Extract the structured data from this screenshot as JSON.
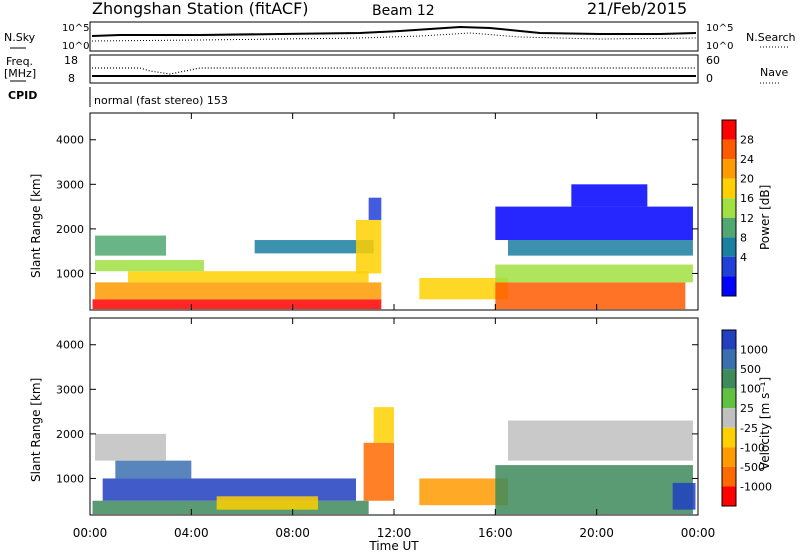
{
  "header": {
    "station": "Zhongshan Station (fitACF)",
    "beam": "Beam 12",
    "date": "21/Feb/2015"
  },
  "strips": {
    "nsky_label": "N.Sky",
    "nsky_scale": [
      "10^5",
      "10^0"
    ],
    "nsearch_label": "N.Search",
    "nsearch_scale": [
      "10^5",
      "10^0"
    ],
    "freq_label_1": "Freq.",
    "freq_label_2": "[MHz]",
    "freq_scale": [
      "18",
      "8"
    ],
    "nave_label": "Nave",
    "nave_scale": [
      "60",
      "0"
    ],
    "cpid_label": "CPID",
    "cpid_text": "normal (fast stereo) 153"
  },
  "colorbars": {
    "power": {
      "label": "Power [dB]",
      "ticks": [
        "28",
        "24",
        "20",
        "16",
        "12",
        "8",
        "4"
      ],
      "colors": [
        "#ff0000",
        "#ff5a00",
        "#ff9a00",
        "#ffd000",
        "#a0e040",
        "#50a870",
        "#1a7fa0",
        "#2040d8",
        "#0000ff"
      ]
    },
    "velocity": {
      "label": "Velocity [m s⁻¹]",
      "ticks": [
        "1000",
        "500",
        "100",
        "25",
        "-25",
        "-100",
        "-500",
        "-1000"
      ],
      "colors": [
        "#2040c0",
        "#3a70b0",
        "#3d8a5a",
        "#60c040",
        "#c0c0c0",
        "#ffd000",
        "#ff9a00",
        "#ff6a00",
        "#ff0000"
      ]
    }
  },
  "chart_data": [
    {
      "type": "heatmap",
      "panel": "power",
      "ylabel": "Slant Range [km]",
      "yticks": [
        1000,
        2000,
        3000,
        4000
      ],
      "ylim": [
        180,
        4600
      ],
      "xlim": [
        0,
        24
      ],
      "bands": [
        {
          "t0": 0.1,
          "t1": 11.5,
          "r0": 200,
          "r1": 420,
          "level": 0
        },
        {
          "t0": 0.2,
          "t1": 11.5,
          "r0": 420,
          "r1": 800,
          "level": 2
        },
        {
          "t0": 1.5,
          "t1": 11.0,
          "r0": 800,
          "r1": 1050,
          "level": 3
        },
        {
          "t0": 0.2,
          "t1": 4.5,
          "r0": 1050,
          "r1": 1300,
          "level": 4
        },
        {
          "t0": 0.2,
          "t1": 3.0,
          "r0": 1400,
          "r1": 1850,
          "level": 5
        },
        {
          "t0": 6.5,
          "t1": 11.2,
          "r0": 1450,
          "r1": 1750,
          "level": 6
        },
        {
          "t0": 10.5,
          "t1": 11.5,
          "r0": 1000,
          "r1": 2200,
          "level": 3
        },
        {
          "t0": 11.0,
          "t1": 11.5,
          "r0": 2200,
          "r1": 2700,
          "level": 7
        },
        {
          "t0": 13.0,
          "t1": 16.5,
          "r0": 420,
          "r1": 900,
          "level": 3
        },
        {
          "t0": 16.0,
          "t1": 23.5,
          "r0": 200,
          "r1": 800,
          "level": 1
        },
        {
          "t0": 16.0,
          "t1": 23.8,
          "r0": 800,
          "r1": 1200,
          "level": 4
        },
        {
          "t0": 16.5,
          "t1": 23.8,
          "r0": 1400,
          "r1": 1750,
          "level": 6
        },
        {
          "t0": 16.0,
          "t1": 23.8,
          "r0": 1750,
          "r1": 2500,
          "level": 8
        },
        {
          "t0": 19.0,
          "t1": 22.0,
          "r0": 2500,
          "r1": 3000,
          "level": 8
        }
      ]
    },
    {
      "type": "heatmap",
      "panel": "velocity",
      "ylabel": "Slant Range [km]",
      "yticks": [
        1000,
        2000,
        3000,
        4000
      ],
      "ylim": [
        180,
        4600
      ],
      "xlim": [
        0,
        24
      ],
      "xticks": [
        "00:00",
        "04:00",
        "08:00",
        "12:00",
        "16:00",
        "20:00",
        "00:00"
      ],
      "xlabel": "Time UT",
      "bands": [
        {
          "t0": 0.1,
          "t1": 11.0,
          "r0": 200,
          "r1": 500,
          "level": 2
        },
        {
          "t0": 0.5,
          "t1": 10.5,
          "r0": 500,
          "r1": 1000,
          "level": 0
        },
        {
          "t0": 1.0,
          "t1": 4.0,
          "r0": 1000,
          "r1": 1400,
          "level": 1
        },
        {
          "t0": 0.2,
          "t1": 3.0,
          "r0": 1400,
          "r1": 2000,
          "level": 4
        },
        {
          "t0": 5.0,
          "t1": 9.0,
          "r0": 300,
          "r1": 600,
          "level": 5
        },
        {
          "t0": 10.8,
          "t1": 12.0,
          "r0": 500,
          "r1": 1800,
          "level": 7
        },
        {
          "t0": 11.2,
          "t1": 12.0,
          "r0": 1800,
          "r1": 2600,
          "level": 5
        },
        {
          "t0": 13.0,
          "t1": 16.5,
          "r0": 400,
          "r1": 1000,
          "level": 6
        },
        {
          "t0": 16.0,
          "t1": 23.8,
          "r0": 200,
          "r1": 1300,
          "level": 2
        },
        {
          "t0": 16.5,
          "t1": 23.8,
          "r0": 1400,
          "r1": 2300,
          "level": 4
        },
        {
          "t0": 23.0,
          "t1": 23.9,
          "r0": 300,
          "r1": 900,
          "level": 0
        }
      ]
    }
  ]
}
